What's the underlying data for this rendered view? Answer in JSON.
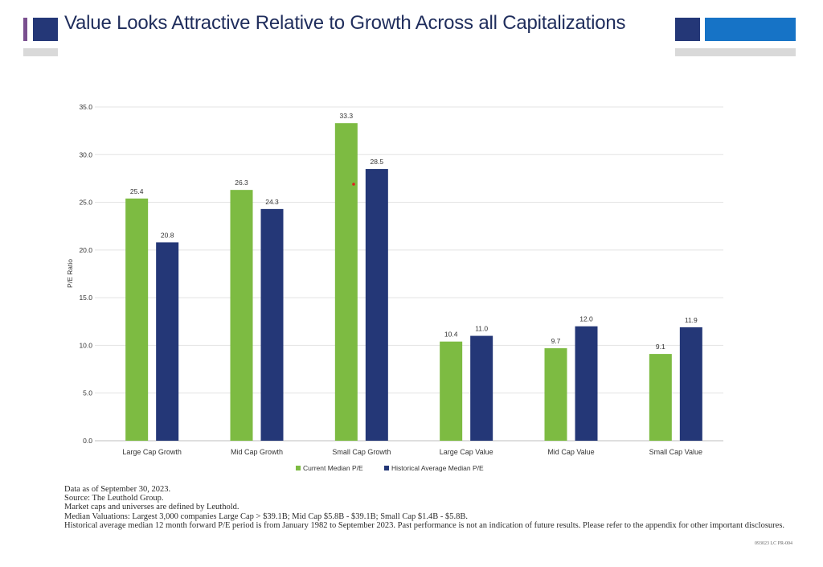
{
  "header": {
    "title": "Value Looks Attractive Relative to Growth Across all Capitalizations",
    "colors": {
      "navy": "#243777",
      "blue": "#1673c6",
      "purple": "#7a4f8f",
      "gray": "#d9d9d9"
    }
  },
  "chart_data": {
    "type": "bar",
    "title": "",
    "xlabel": "",
    "ylabel": "P/E Ratio",
    "ylim": [
      0,
      35
    ],
    "yticks": [
      "0.0",
      "5.0",
      "10.0",
      "15.0",
      "20.0",
      "25.0",
      "30.0",
      "35.0"
    ],
    "grid": true,
    "legend_position": "bottom",
    "categories": [
      "Large Cap Growth",
      "Mid Cap Growth",
      "Small Cap Growth",
      "Large Cap Value",
      "Mid Cap Value",
      "Small Cap Value"
    ],
    "series": [
      {
        "name": "Current Median P/E",
        "color": "#7dbb42",
        "values": [
          25.4,
          26.3,
          33.3,
          10.4,
          9.7,
          9.1
        ],
        "labels": [
          "25.4",
          "26.3",
          "33.3",
          "10.4",
          "9.7",
          "9.1"
        ]
      },
      {
        "name": "Historical Average Median P/E",
        "color": "#243777",
        "values": [
          20.8,
          24.3,
          28.5,
          11.0,
          12.0,
          11.9
        ],
        "labels": [
          "20.8",
          "24.3",
          "28.5",
          "11.0",
          "12.0",
          "11.9"
        ]
      }
    ]
  },
  "footnotes": {
    "line1": "Data as of September 30, 2023.",
    "line2": "Source:  The Leuthold Group.",
    "line3": "Market caps and universes are defined by Leuthold.",
    "line4": "Median Valuations:  Largest 3,000 companies Large Cap > $39.1B; Mid Cap $5.8B - $39.1B; Small Cap $1.4B - $5.8B.",
    "line5": "Historical average median 12 month forward P/E period is from January 1982 to September 2023. Past performance is not an indication of future results. Please refer to the appendix for other important disclosures.",
    "code": "093023 LC PR-004"
  }
}
